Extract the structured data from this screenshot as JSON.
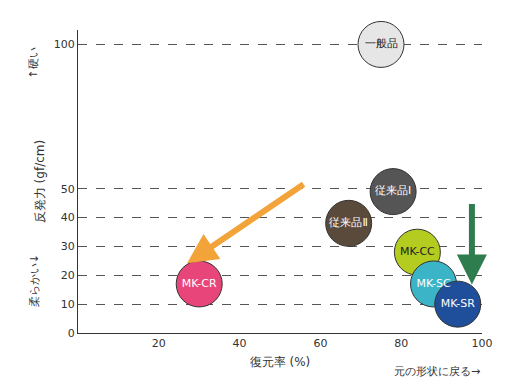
{
  "chart_data": {
    "type": "scatter",
    "x_title": "復元率 (%)",
    "y_title": "反発力 (gf/cm)",
    "labels": [
      "一般品",
      "従来品Ⅰ",
      "従来品Ⅱ",
      "MK-CC",
      "MK-SC",
      "MK-SR",
      "MK-CR"
    ],
    "x": [
      75,
      78,
      67,
      84,
      88,
      94,
      30
    ],
    "values": [
      100,
      49,
      38,
      28,
      17,
      10,
      17
    ],
    "colors": [
      "#e6e6e6",
      "#555555",
      "#5a4a3c",
      "#b3cc1f",
      "#3ab4c6",
      "#1f4e9b",
      "#e8457a"
    ],
    "xlim": [
      0,
      100
    ],
    "xticks": [
      20,
      40,
      60,
      80,
      100
    ],
    "ylim": [
      0,
      105
    ],
    "yticks": [
      0,
      10,
      20,
      30,
      40,
      50,
      100
    ],
    "grid": "y",
    "annotations": [
      "↑硬い",
      "柔らかい↓",
      "元の形状に戻る→"
    ]
  }
}
